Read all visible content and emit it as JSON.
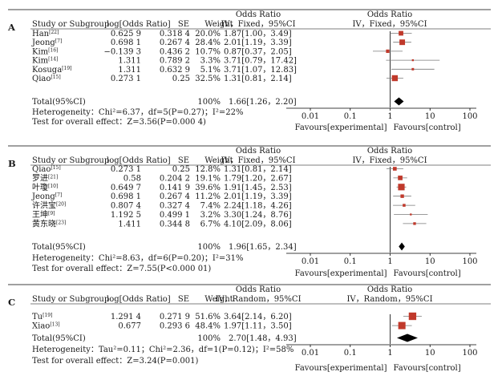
{
  "chart_data": [
    {
      "type": "forest",
      "panel": "A",
      "header": {
        "study": "Study or Subgroup",
        "logor": "log[Odds Ratio]",
        "se": "SE",
        "weight": "Weight",
        "ci_top": "Odds Ratio",
        "ci_bottom": "IV，Fixed，95%CI",
        "plot_top": "Odds Ratio",
        "plot_bottom": "IV，Fixed，95%CI"
      },
      "studies": [
        {
          "name": "Han",
          "ref": "[22]",
          "logor": "0.625 9",
          "se": "0.318 4",
          "weight": "20.0%",
          "ci": "1.87[1.00，3.49]",
          "or": 1.87,
          "lo": 1.0,
          "hi": 3.49,
          "w": 20.0
        },
        {
          "name": "Jeong",
          "ref": "[7]",
          "logor": "0.698 1",
          "se": "0.267 4",
          "weight": "28.4%",
          "ci": "2.01[1.19，3.39]",
          "or": 2.01,
          "lo": 1.19,
          "hi": 3.39,
          "w": 28.4
        },
        {
          "name": "Kim",
          "ref": "[16]",
          "logor": "−0.139 3",
          "se": "0.436 2",
          "weight": "10.7%",
          "ci": "0.87[0.37，2.05]",
          "or": 0.87,
          "lo": 0.37,
          "hi": 2.05,
          "w": 10.7
        },
        {
          "name": "Kim",
          "ref": "[14]",
          "logor": "1.311",
          "se": "0.789 2",
          "weight": "3.3%",
          "ci": "3.71[0.79，17.42]",
          "or": 3.71,
          "lo": 0.79,
          "hi": 17.42,
          "w": 3.3
        },
        {
          "name": "Kosuga",
          "ref": "[19]",
          "logor": "1.311",
          "se": "0.632 9",
          "weight": "5.1%",
          "ci": "3.71[1.07，12.83]",
          "or": 3.71,
          "lo": 1.07,
          "hi": 12.83,
          "w": 5.1
        },
        {
          "name": "Qiao",
          "ref": "[15]",
          "logor": "0.273 1",
          "se": "0.25",
          "weight": "32.5%",
          "ci": "1.31[0.81，2.14]",
          "or": 1.31,
          "lo": 0.81,
          "hi": 2.14,
          "w": 32.5
        }
      ],
      "total": {
        "label": "Total(95%CI)",
        "weight": "100%",
        "ci": "1.66[1.26，2.20]",
        "or": 1.66,
        "lo": 1.26,
        "hi": 2.2
      },
      "heterogeneity": "Heterogeneity：Chi²=6.37，df=5(P=0.27)；I²=22%",
      "overall": "Test for overall effect：Z=3.56(P=0.000 4)",
      "axis": {
        "ticks": [
          "0.01",
          "0.1",
          "1",
          "10",
          "100"
        ],
        "xlim": [
          0.01,
          100
        ],
        "scale": "log"
      },
      "favours": {
        "left": "Favours[experimental]",
        "right": "Favours[control]"
      }
    },
    {
      "type": "forest",
      "panel": "B",
      "header": {
        "study": "Study or Subgroup",
        "logor": "log[Odds Ratio]",
        "se": "SE",
        "weight": "Weight",
        "ci_top": "Odds Ratio",
        "ci_bottom": "IV，Fixed，95%CI",
        "plot_top": "Odds Ratio",
        "plot_bottom": "IV，Fixed，95%CI"
      },
      "studies": [
        {
          "name": "Qiao",
          "ref": "[15]",
          "logor": "0.273 1",
          "se": "0.25",
          "weight": "12.8%",
          "ci": "1.31[0.81，2.14]",
          "or": 1.31,
          "lo": 0.81,
          "hi": 2.14,
          "w": 12.8
        },
        {
          "name": "罗进",
          "ref": "[21]",
          "logor": "0.58",
          "se": "0.204 2",
          "weight": "19.1%",
          "ci": "1.79[1.20，2.67]",
          "or": 1.79,
          "lo": 1.2,
          "hi": 2.67,
          "w": 19.1
        },
        {
          "name": "叶瓊",
          "ref": "[10]",
          "logor": "0.649 7",
          "se": "0.141 9",
          "weight": "39.6%",
          "ci": "1.91[1.45，2.53]",
          "or": 1.91,
          "lo": 1.45,
          "hi": 2.53,
          "w": 39.6
        },
        {
          "name": "Jeong",
          "ref": "[7]",
          "logor": "0.698 1",
          "se": "0.267 4",
          "weight": "11.2%",
          "ci": "2.01[1.19，3.39]",
          "or": 2.01,
          "lo": 1.19,
          "hi": 3.39,
          "w": 11.2
        },
        {
          "name": "许洪宝",
          "ref": "[20]",
          "logor": "0.807 4",
          "se": "0.327 4",
          "weight": "7.4%",
          "ci": "2.24[1.18，4.26]",
          "or": 2.24,
          "lo": 1.18,
          "hi": 4.26,
          "w": 7.4
        },
        {
          "name": "王坤",
          "ref": "[9]",
          "logor": "1.192 5",
          "se": "0.499 1",
          "weight": "3.2%",
          "ci": "3.30[1.24，8.76]",
          "or": 3.3,
          "lo": 1.24,
          "hi": 8.76,
          "w": 3.2
        },
        {
          "name": "黄东晓",
          "ref": "[23]",
          "logor": "1.411",
          "se": "0.344 8",
          "weight": "6.7%",
          "ci": "4.10[2.09，8.06]",
          "or": 4.1,
          "lo": 2.09,
          "hi": 8.06,
          "w": 6.7
        }
      ],
      "total": {
        "label": "Total(95%CI)",
        "weight": "100%",
        "ci": "1.96[1.65，2.34]",
        "or": 1.96,
        "lo": 1.65,
        "hi": 2.34
      },
      "heterogeneity": "Heterogeneity：Chi²=8.63，df=6(P=0.20)；I²=31%",
      "overall": "Test for overall effect：Z=7.55(P<0.000 01)",
      "axis": {
        "ticks": [
          "0.01",
          "0.1",
          "1",
          "10",
          "100"
        ],
        "xlim": [
          0.01,
          100
        ],
        "scale": "log"
      },
      "favours": {
        "left": "Favours[experimental]",
        "right": "Favours[control]"
      }
    },
    {
      "type": "forest",
      "panel": "C",
      "header": {
        "study": "Study or Subgroup",
        "logor": "log[Odds Ratio]",
        "se": "SE",
        "weight": "Weight",
        "ci_top": "Odds Ratio",
        "ci_bottom": "IV，Random，95%CI",
        "plot_top": "Odds Ratio",
        "plot_bottom": "IV，Random，95%CI"
      },
      "studies": [
        {
          "name": "Tu",
          "ref": "[19]",
          "logor": "1.291 4",
          "se": "0.271 9",
          "weight": "51.6%",
          "ci": "3.64[2.14，6.20]",
          "or": 3.64,
          "lo": 2.14,
          "hi": 6.2,
          "w": 51.6
        },
        {
          "name": "Xiao",
          "ref": "[13]",
          "logor": "0.677",
          "se": "0.293 6",
          "weight": "48.4%",
          "ci": "1.97[1.11，3.50]",
          "or": 1.97,
          "lo": 1.11,
          "hi": 3.5,
          "w": 48.4
        }
      ],
      "total": {
        "label": "Total(95%CI)",
        "weight": "100%",
        "ci": "2.70[1.48，4.93]",
        "or": 2.7,
        "lo": 1.48,
        "hi": 4.93
      },
      "heterogeneity": "Heterogeneity：Tau²=0.11；Chi²=2.36，df=1(P=0.12)；I²=58%",
      "overall": "Test for overall effect：Z=3.24(P=0.001)",
      "axis": {
        "ticks": [
          "0.01",
          "0.1",
          "1",
          "10",
          "100"
        ],
        "xlim": [
          0.01,
          100
        ],
        "scale": "log"
      },
      "favours": {
        "left": "Favours[experimental]",
        "right": "Favours[control]"
      }
    }
  ],
  "colors": {
    "marker": "#c0392b",
    "ci_line": "#7a7a7a",
    "text": "#1a1a1a",
    "diamond": "#000000",
    "rule": "#000000"
  }
}
